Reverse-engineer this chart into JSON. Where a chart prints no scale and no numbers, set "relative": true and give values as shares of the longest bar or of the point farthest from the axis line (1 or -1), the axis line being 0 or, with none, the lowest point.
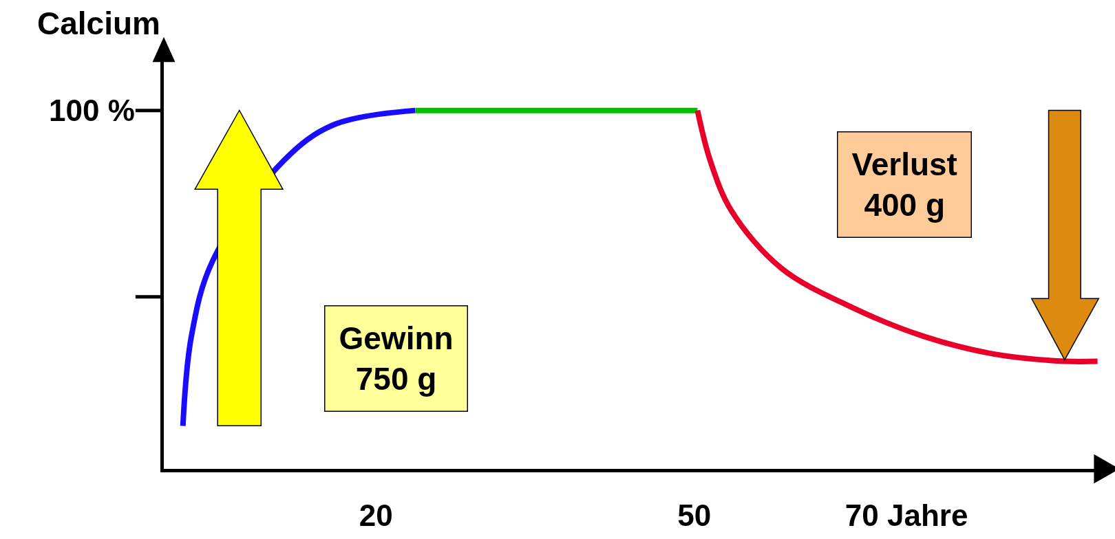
{
  "chart_data": {
    "type": "line",
    "ylabel": "Calcium",
    "relative": true,
    "xlim": [
      0,
      89
    ],
    "xticks": [
      20,
      50,
      {
        "value": 70,
        "label": "70 Jahre"
      }
    ],
    "marker": "none",
    "line_style": "solid",
    "series": [
      {
        "color": "#1a0dff",
        "x": [
          1.8,
          2.6,
          4.6,
          11.3,
          16,
          23.7
        ],
        "values": [
          0.12,
          0.37,
          0.58,
          0.86,
          0.96,
          1
        ]
      },
      {
        "color": "#00c000",
        "x": [
          23.7,
          50.3
        ],
        "values": [
          1,
          1
        ]
      },
      {
        "color": "#e8002a",
        "x": [
          50.3,
          51.5,
          53.5,
          58.2,
          64.9,
          71.6,
          78.3,
          85,
          88
        ],
        "values": [
          1,
          0.86,
          0.72,
          0.56,
          0.45,
          0.37,
          0.32,
          0.3,
          0.3
        ]
      }
    ],
    "annotations": [
      "Gewinn\n750 g",
      "Verlust\n400 g",
      "100 %"
    ]
  }
}
